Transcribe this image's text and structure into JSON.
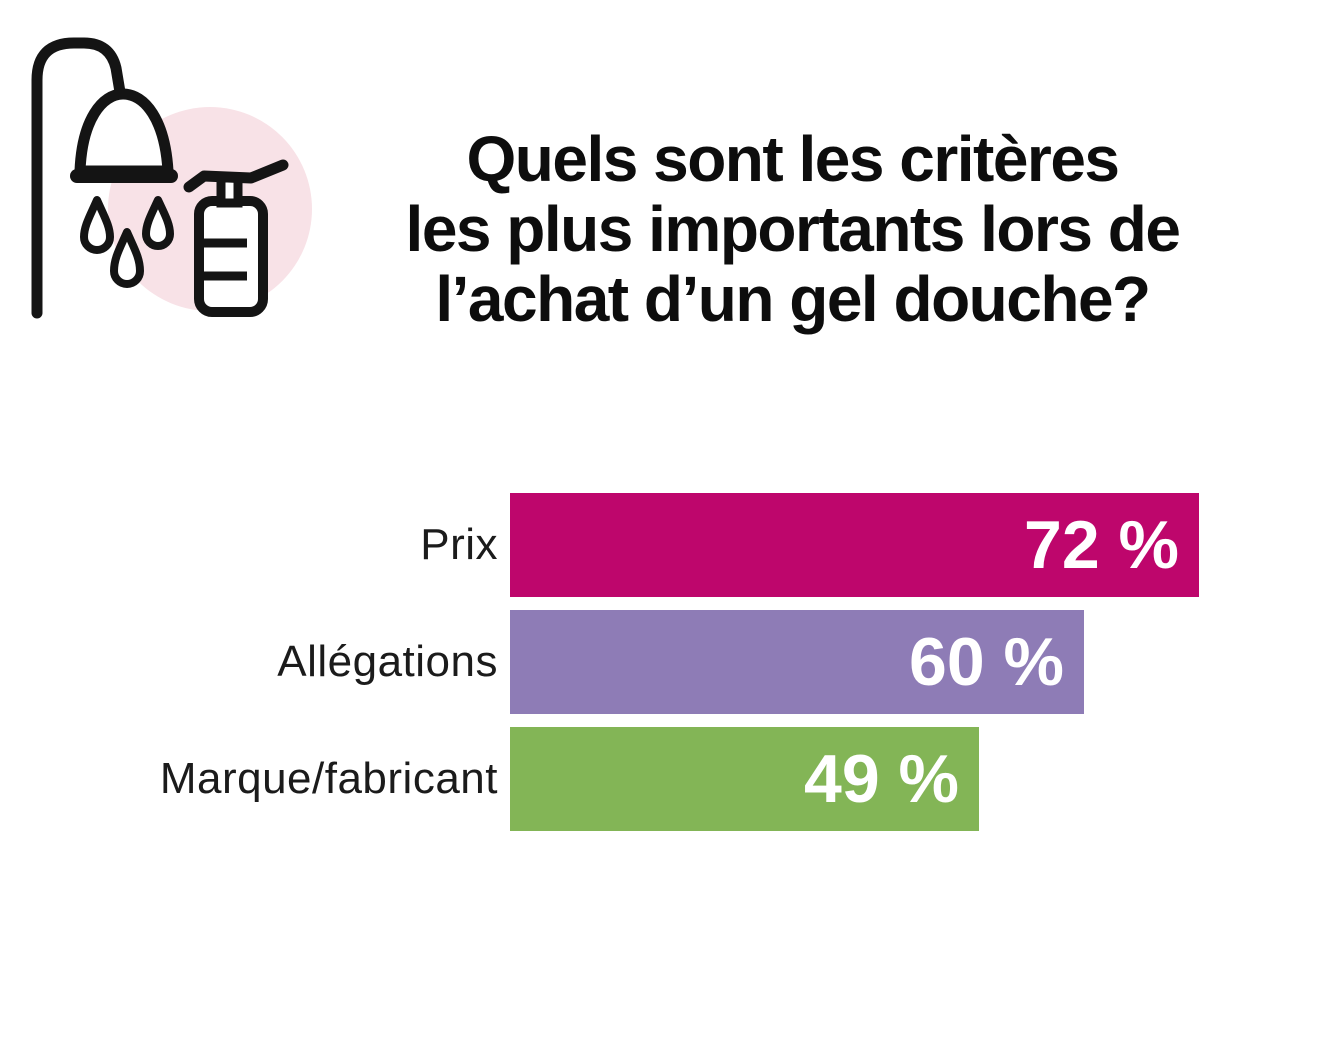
{
  "header": {
    "title_lines": [
      "Quels sont les critères",
      "les plus importants lors de",
      "l’achat d’un gel douche?"
    ]
  },
  "icon": {
    "name": "shower-and-soap-dispenser",
    "background_circle_color": "#F8E2E7",
    "line_color": "#141414"
  },
  "chart_data": {
    "type": "bar",
    "orientation": "horizontal",
    "title": "Quels sont les critères les plus importants lors de l’achat d’un gel douche?",
    "categories": [
      "Prix",
      "Allégations",
      "Marque/fabricant"
    ],
    "values": [
      72,
      60,
      49
    ],
    "value_labels": [
      "72 %",
      "60 %",
      "49 %"
    ],
    "bar_colors": [
      "#BE066C",
      "#8E7CB6",
      "#83B556"
    ],
    "xlim": [
      0,
      100
    ],
    "grid": false,
    "legend": false,
    "value_label_position": "inside-right",
    "category_label_position": "left"
  }
}
